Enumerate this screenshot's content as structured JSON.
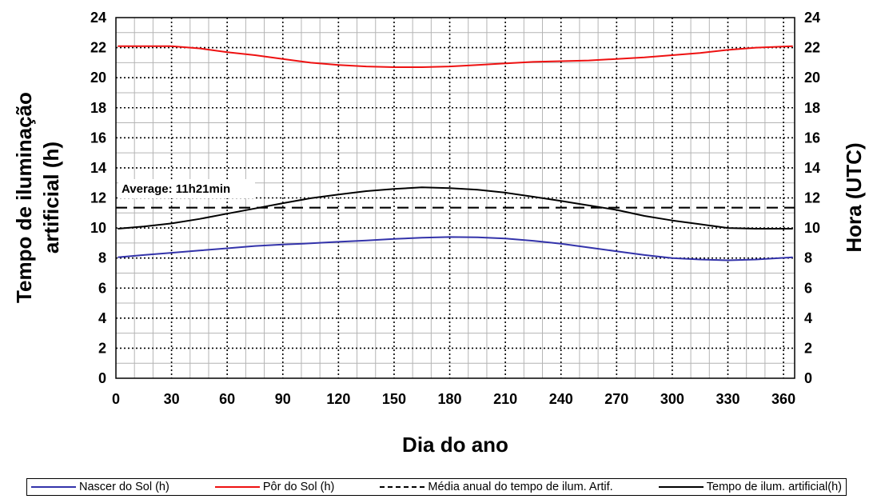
{
  "chart_data": {
    "type": "line",
    "xlabel": "Dia do ano",
    "ylabel_left": [
      "Tempo de iluminação",
      "artificial (h)"
    ],
    "ylabel_right": "Hora (UTC)",
    "xlim": [
      0,
      366
    ],
    "ylim": [
      0,
      24
    ],
    "xticks": [
      0,
      30,
      60,
      90,
      120,
      150,
      180,
      210,
      240,
      270,
      300,
      330,
      360
    ],
    "yticks": [
      0,
      2,
      4,
      6,
      8,
      10,
      12,
      14,
      16,
      18,
      20,
      22,
      24
    ],
    "grid": true,
    "legend_position": "bottom",
    "annotation": "Average: 11h21min",
    "series": [
      {
        "name": "Nascer do Sol (h)",
        "color": "#3333aa",
        "style": "solid",
        "x": [
          1,
          15,
          30,
          45,
          60,
          75,
          90,
          105,
          120,
          135,
          150,
          165,
          180,
          195,
          210,
          225,
          240,
          255,
          270,
          285,
          300,
          315,
          330,
          345,
          365
        ],
        "values": [
          8.05,
          8.2,
          8.35,
          8.5,
          8.65,
          8.8,
          8.9,
          8.98,
          9.08,
          9.17,
          9.27,
          9.35,
          9.4,
          9.38,
          9.3,
          9.15,
          8.95,
          8.7,
          8.45,
          8.2,
          8.0,
          7.9,
          7.85,
          7.9,
          8.05
        ]
      },
      {
        "name": "Pôr do Sol (h)",
        "color": "#ee1111",
        "style": "solid",
        "x": [
          1,
          15,
          30,
          45,
          60,
          75,
          90,
          105,
          120,
          135,
          150,
          165,
          180,
          195,
          210,
          225,
          240,
          255,
          270,
          285,
          300,
          315,
          330,
          345,
          365
        ],
        "values": [
          22.1,
          22.1,
          22.1,
          21.95,
          21.7,
          21.5,
          21.25,
          21.0,
          20.85,
          20.75,
          20.7,
          20.7,
          20.75,
          20.85,
          20.95,
          21.05,
          21.1,
          21.15,
          21.25,
          21.35,
          21.5,
          21.65,
          21.85,
          22.0,
          22.1
        ]
      },
      {
        "name": "Média anual do tempo de ilum. Artif.",
        "color": "#000000",
        "style": "dashed",
        "x": [
          0,
          366
        ],
        "values": [
          11.35,
          11.35
        ]
      },
      {
        "name": "Tempo de ilum. artificial(h)",
        "color": "#000000",
        "style": "solid",
        "x": [
          1,
          15,
          30,
          45,
          60,
          75,
          90,
          105,
          120,
          135,
          150,
          165,
          180,
          195,
          210,
          225,
          240,
          255,
          270,
          285,
          300,
          315,
          330,
          345,
          365
        ],
        "values": [
          9.95,
          10.1,
          10.3,
          10.6,
          10.95,
          11.3,
          11.65,
          11.98,
          12.23,
          12.45,
          12.6,
          12.7,
          12.65,
          12.55,
          12.35,
          12.08,
          11.8,
          11.5,
          11.2,
          10.8,
          10.5,
          10.25,
          10.0,
          9.95,
          9.95
        ]
      }
    ]
  }
}
